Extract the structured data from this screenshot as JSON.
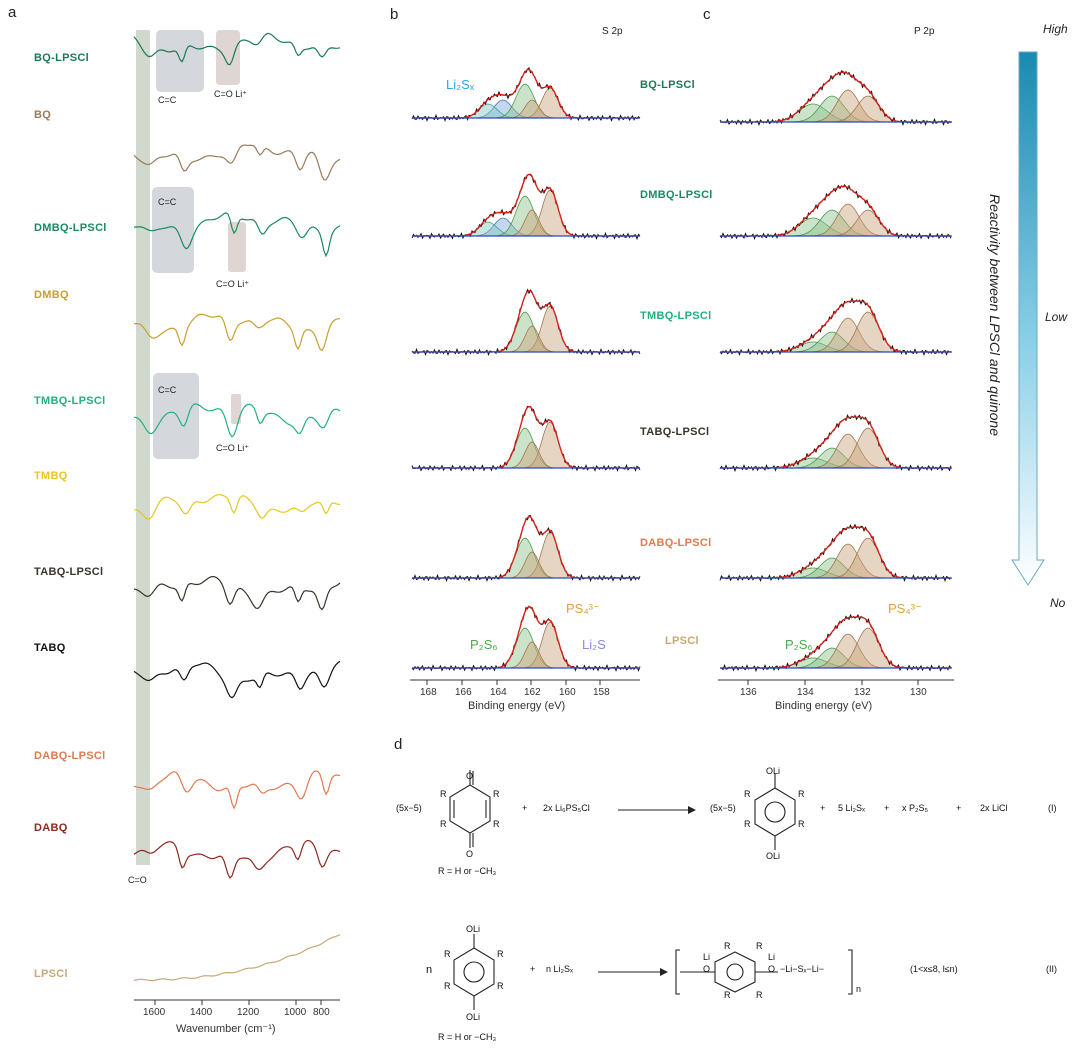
{
  "panels": {
    "a": "a",
    "b": "b",
    "c": "c",
    "d": "d"
  },
  "ftir": {
    "labels": [
      "BQ-LPSCl",
      "BQ",
      "DMBQ-LPSCl",
      "DMBQ",
      "TMBQ-LPSCl",
      "TMBQ",
      "TABQ-LPSCl",
      "TABQ",
      "DABQ-LPSCl",
      "DABQ",
      "LPSCl"
    ],
    "colors": [
      "#1a7a55",
      "#9a7a5a",
      "#1a8a60",
      "#c7a030",
      "#22b080",
      "#e6c820",
      "#3a342a",
      "#111111",
      "#e07a50",
      "#8a2a20",
      "#c8a878"
    ],
    "annotations": {
      "cc1": "C=C",
      "co1": "C=O  Li⁺",
      "cc2": "C=C",
      "co2": "C=O  Li⁺",
      "cc3": "C=C",
      "co3": "C=O  Li⁺",
      "co_band": "C=O"
    },
    "xticks": [
      "1600",
      "1400",
      "1200",
      "1000",
      "800"
    ],
    "xlabel": "Wavenumber (cm⁻¹)"
  },
  "xps_s": {
    "title": "S 2p",
    "xticks": [
      "168",
      "166",
      "164",
      "162",
      "160",
      "158"
    ],
    "xlabel": "Binding energy (eV)",
    "annot_li2sx": "Li₂Sₓ",
    "annot_p2s6": "P₂S₆",
    "annot_li2s": "Li₂S",
    "annot_ps4": "PS₄³⁻"
  },
  "middle_labels": [
    "BQ-LPSCl",
    "DMBQ-LPSCl",
    "TMBQ-LPSCl",
    "TABQ-LPSCl",
    "DABQ-LPSCl",
    "LPSCl"
  ],
  "middle_colors": [
    "#1a7a55",
    "#1a8a60",
    "#22b080",
    "#3a342a",
    "#e07a50",
    "#c8a878"
  ],
  "xps_p": {
    "title": "P 2p",
    "xticks": [
      "136",
      "134",
      "132",
      "130"
    ],
    "xlabel": "Binding energy (eV)",
    "annot_p2s6": "P₂S₆",
    "annot_ps4": "PS₄³⁻"
  },
  "reactivity": {
    "high": "High",
    "low": "Low",
    "no": "No",
    "title": "Reactivity between LPSCl and quinone"
  },
  "scheme": {
    "r1_left_coef": "(5x−5)",
    "r1_plus1": "+",
    "r1_reagent": "2x Li₆PS₅Cl",
    "r1_prod_coef": "(5x−5)",
    "r1_p2": "+",
    "r1_li2sx": "5 Li₂Sₓ",
    "r1_p3": "+",
    "r1_p2s5": "x P₂S₅",
    "r1_p4": "+",
    "r1_licl": "2x LiCl",
    "r1_num": "(I)",
    "r1_R": "R =  H or −CH₃",
    "r2_n": "n",
    "r2_plus": "+",
    "r2_reagent": "n Li₂Sₓ",
    "r2_chain": "−Li−Sₓ−Li−",
    "r2_cond": "(1<x≤8, l≤n)",
    "r2_num": "(II)",
    "r2_R": "R =  H or −CH₃",
    "sub_n": "n",
    "R": "R",
    "O": "O",
    "OLi": "OLi",
    "Li": "Li"
  }
}
